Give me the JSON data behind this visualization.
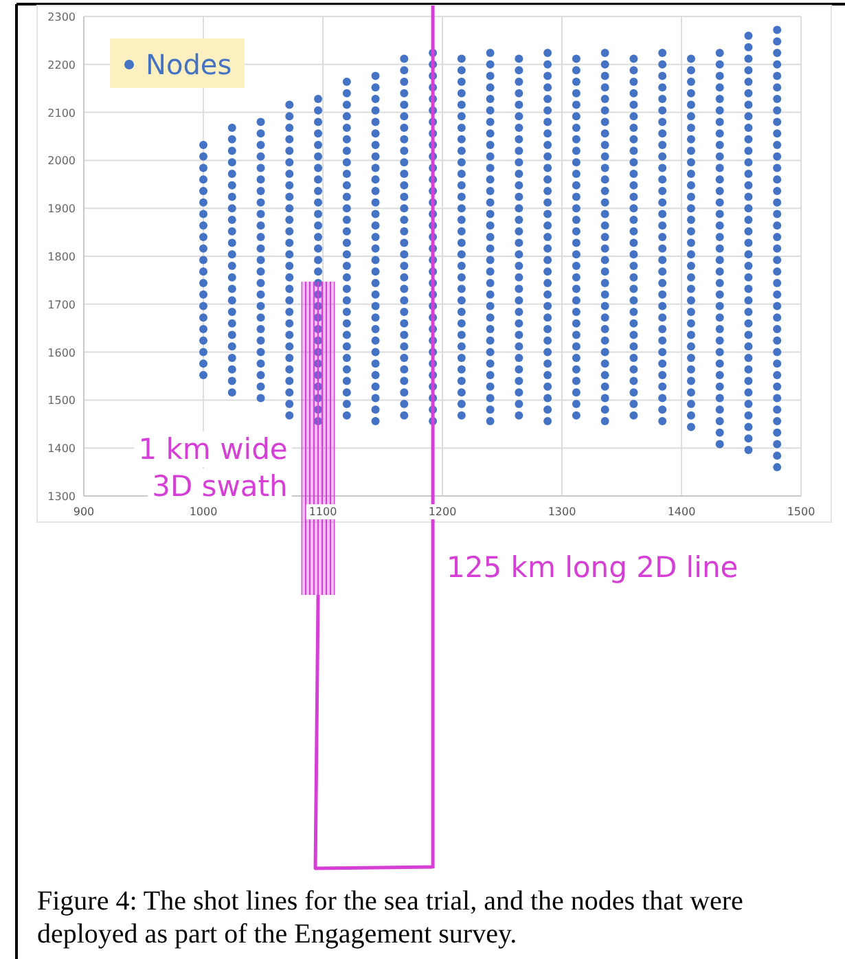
{
  "chart_data": {
    "type": "scatter",
    "xlim": [
      900,
      1500
    ],
    "ylim": [
      1300,
      2300
    ],
    "xticks": [
      900,
      1000,
      1100,
      1200,
      1300,
      1400,
      1500
    ],
    "yticks": [
      1300,
      1400,
      1500,
      1600,
      1700,
      1800,
      1900,
      2000,
      2100,
      2200,
      2300
    ],
    "grid": true,
    "legend": "top left",
    "marker": "circle",
    "series": [
      {
        "name": "Nodes",
        "color": "#4472c4",
        "x": [
          1000,
          1000,
          1000,
          1000,
          1000,
          1000,
          1000,
          1000,
          1000,
          1000,
          1000,
          1000,
          1000,
          1000,
          1000,
          1000,
          1000,
          1000,
          1000,
          1000,
          1000,
          1024,
          1024,
          1024,
          1024,
          1024,
          1024,
          1024,
          1024,
          1024,
          1024,
          1024,
          1024,
          1024,
          1024,
          1024,
          1024,
          1024,
          1024,
          1024,
          1024,
          1024,
          1024,
          1024,
          1024,
          1048,
          1048,
          1048,
          1048,
          1048,
          1048,
          1048,
          1048,
          1048,
          1048,
          1048,
          1048,
          1048,
          1048,
          1048,
          1048,
          1048,
          1048,
          1048,
          1048,
          1048,
          1048,
          1048,
          1048,
          1048,
          1072,
          1072,
          1072,
          1072,
          1072,
          1072,
          1072,
          1072,
          1072,
          1072,
          1072,
          1072,
          1072,
          1072,
          1072,
          1072,
          1072,
          1072,
          1072,
          1072,
          1072,
          1072,
          1072,
          1072,
          1072,
          1072,
          1072,
          1072,
          1096,
          1096,
          1096,
          1096,
          1096,
          1096,
          1096,
          1096,
          1096,
          1096,
          1096,
          1096,
          1096,
          1096,
          1096,
          1096,
          1096,
          1096,
          1096,
          1096,
          1096,
          1096,
          1096,
          1096,
          1096,
          1096,
          1096,
          1096,
          1096,
          1120,
          1120,
          1120,
          1120,
          1120,
          1120,
          1120,
          1120,
          1120,
          1120,
          1120,
          1120,
          1120,
          1120,
          1120,
          1120,
          1120,
          1120,
          1120,
          1120,
          1120,
          1120,
          1120,
          1120,
          1120,
          1120,
          1120,
          1120,
          1120,
          1120,
          1144,
          1144,
          1144,
          1144,
          1144,
          1144,
          1144,
          1144,
          1144,
          1144,
          1144,
          1144,
          1144,
          1144,
          1144,
          1144,
          1144,
          1144,
          1144,
          1144,
          1144,
          1144,
          1144,
          1144,
          1144,
          1144,
          1144,
          1144,
          1144,
          1144,
          1144,
          1168,
          1168,
          1168,
          1168,
          1168,
          1168,
          1168,
          1168,
          1168,
          1168,
          1168,
          1168,
          1168,
          1168,
          1168,
          1168,
          1168,
          1168,
          1168,
          1168,
          1168,
          1168,
          1168,
          1168,
          1168,
          1168,
          1168,
          1168,
          1168,
          1168,
          1168,
          1168,
          1192,
          1192,
          1192,
          1192,
          1192,
          1192,
          1192,
          1192,
          1192,
          1192,
          1192,
          1192,
          1192,
          1192,
          1192,
          1192,
          1192,
          1192,
          1192,
          1192,
          1192,
          1192,
          1192,
          1192,
          1192,
          1192,
          1192,
          1192,
          1192,
          1192,
          1192,
          1192,
          1192,
          1216,
          1216,
          1216,
          1216,
          1216,
          1216,
          1216,
          1216,
          1216,
          1216,
          1216,
          1216,
          1216,
          1216,
          1216,
          1216,
          1216,
          1216,
          1216,
          1216,
          1216,
          1216,
          1216,
          1216,
          1216,
          1216,
          1216,
          1216,
          1216,
          1216,
          1216,
          1216,
          1240,
          1240,
          1240,
          1240,
          1240,
          1240,
          1240,
          1240,
          1240,
          1240,
          1240,
          1240,
          1240,
          1240,
          1240,
          1240,
          1240,
          1240,
          1240,
          1240,
          1240,
          1240,
          1240,
          1240,
          1240,
          1240,
          1240,
          1240,
          1240,
          1240,
          1240,
          1240,
          1240,
          1264,
          1264,
          1264,
          1264,
          1264,
          1264,
          1264,
          1264,
          1264,
          1264,
          1264,
          1264,
          1264,
          1264,
          1264,
          1264,
          1264,
          1264,
          1264,
          1264,
          1264,
          1264,
          1264,
          1264,
          1264,
          1264,
          1264,
          1264,
          1264,
          1264,
          1264,
          1264,
          1288,
          1288,
          1288,
          1288,
          1288,
          1288,
          1288,
          1288,
          1288,
          1288,
          1288,
          1288,
          1288,
          1288,
          1288,
          1288,
          1288,
          1288,
          1288,
          1288,
          1288,
          1288,
          1288,
          1288,
          1288,
          1288,
          1288,
          1288,
          1288,
          1288,
          1288,
          1288,
          1288,
          1312,
          1312,
          1312,
          1312,
          1312,
          1312,
          1312,
          1312,
          1312,
          1312,
          1312,
          1312,
          1312,
          1312,
          1312,
          1312,
          1312,
          1312,
          1312,
          1312,
          1312,
          1312,
          1312,
          1312,
          1312,
          1312,
          1312,
          1312,
          1312,
          1312,
          1312,
          1312,
          1336,
          1336,
          1336,
          1336,
          1336,
          1336,
          1336,
          1336,
          1336,
          1336,
          1336,
          1336,
          1336,
          1336,
          1336,
          1336,
          1336,
          1336,
          1336,
          1336,
          1336,
          1336,
          1336,
          1336,
          1336,
          1336,
          1336,
          1336,
          1336,
          1336,
          1336,
          1336,
          1336,
          1360,
          1360,
          1360,
          1360,
          1360,
          1360,
          1360,
          1360,
          1360,
          1360,
          1360,
          1360,
          1360,
          1360,
          1360,
          1360,
          1360,
          1360,
          1360,
          1360,
          1360,
          1360,
          1360,
          1360,
          1360,
          1360,
          1360,
          1360,
          1360,
          1360,
          1360,
          1360,
          1384,
          1384,
          1384,
          1384,
          1384,
          1384,
          1384,
          1384,
          1384,
          1384,
          1384,
          1384,
          1384,
          1384,
          1384,
          1384,
          1384,
          1384,
          1384,
          1384,
          1384,
          1384,
          1384,
          1384,
          1384,
          1384,
          1384,
          1384,
          1384,
          1384,
          1384,
          1384,
          1384,
          1408,
          1408,
          1408,
          1408,
          1408,
          1408,
          1408,
          1408,
          1408,
          1408,
          1408,
          1408,
          1408,
          1408,
          1408,
          1408,
          1408,
          1408,
          1408,
          1408,
          1408,
          1408,
          1408,
          1408,
          1408,
          1408,
          1408,
          1408,
          1408,
          1408,
          1408,
          1408,
          1408,
          1432,
          1432,
          1432,
          1432,
          1432,
          1432,
          1432,
          1432,
          1432,
          1432,
          1432,
          1432,
          1432,
          1432,
          1432,
          1432,
          1432,
          1432,
          1432,
          1432,
          1432,
          1432,
          1432,
          1432,
          1432,
          1432,
          1432,
          1432,
          1432,
          1432,
          1432,
          1432,
          1432,
          1432,
          1432,
          1456,
          1456,
          1456,
          1456,
          1456,
          1456,
          1456,
          1456,
          1456,
          1456,
          1456,
          1456,
          1456,
          1456,
          1456,
          1456,
          1456,
          1456,
          1456,
          1456,
          1456,
          1456,
          1456,
          1456,
          1456,
          1456,
          1456,
          1456,
          1456,
          1456,
          1456,
          1456,
          1456,
          1456,
          1456,
          1456,
          1456,
          1480,
          1480,
          1480,
          1480,
          1480,
          1480,
          1480,
          1480,
          1480,
          1480,
          1480,
          1480,
          1480,
          1480,
          1480,
          1480,
          1480,
          1480,
          1480,
          1480,
          1480,
          1480,
          1480,
          1480,
          1480,
          1480,
          1480,
          1480,
          1480,
          1480,
          1480,
          1480,
          1480,
          1480,
          1480,
          1480,
          1480,
          1480,
          1480
        ],
        "values": [
          1552,
          1576,
          1600,
          1624,
          1648,
          1672,
          1696,
          1720,
          1744,
          1768,
          1792,
          1816,
          1840,
          1864,
          1888,
          1912,
          1936,
          1960,
          1984,
          2008,
          2032,
          1516,
          1540,
          1564,
          1588,
          1612,
          1636,
          1660,
          1684,
          1708,
          1732,
          1756,
          1780,
          1804,
          1828,
          1852,
          1876,
          1900,
          1924,
          1948,
          1972,
          1996,
          2020,
          2044,
          2068,
          1504,
          1528,
          1552,
          1576,
          1600,
          1624,
          1648,
          1672,
          1696,
          1720,
          1744,
          1768,
          1792,
          1816,
          1840,
          1864,
          1888,
          1912,
          1936,
          1960,
          1984,
          2008,
          2032,
          2056,
          2080,
          1468,
          1492,
          1516,
          1540,
          1564,
          1588,
          1612,
          1636,
          1660,
          1684,
          1708,
          1732,
          1756,
          1780,
          1804,
          1828,
          1852,
          1876,
          1900,
          1924,
          1948,
          1972,
          1996,
          2020,
          2044,
          2068,
          2092,
          2116,
          1456,
          1480,
          1504,
          1528,
          1552,
          1576,
          1600,
          1624,
          1648,
          1672,
          1696,
          1720,
          1744,
          1768,
          1792,
          1816,
          1840,
          1864,
          1888,
          1912,
          1936,
          1960,
          1984,
          2008,
          2032,
          2056,
          2080,
          2104,
          2128,
          1468,
          1492,
          1516,
          1540,
          1564,
          1588,
          1612,
          1636,
          1660,
          1684,
          1708,
          1732,
          1756,
          1780,
          1804,
          1828,
          1852,
          1876,
          1900,
          1924,
          1948,
          1972,
          1996,
          2020,
          2044,
          2068,
          2092,
          2116,
          2140,
          2164,
          1456,
          1480,
          1504,
          1528,
          1552,
          1576,
          1600,
          1624,
          1648,
          1672,
          1696,
          1720,
          1744,
          1768,
          1792,
          1816,
          1840,
          1864,
          1888,
          1912,
          1936,
          1960,
          1984,
          2008,
          2032,
          2056,
          2080,
          2104,
          2128,
          2152,
          2176,
          1468,
          1492,
          1516,
          1540,
          1564,
          1588,
          1612,
          1636,
          1660,
          1684,
          1708,
          1732,
          1756,
          1780,
          1804,
          1828,
          1852,
          1876,
          1900,
          1924,
          1948,
          1972,
          1996,
          2020,
          2044,
          2068,
          2092,
          2116,
          2140,
          2164,
          2188,
          2212,
          1456,
          1480,
          1504,
          1528,
          1552,
          1576,
          1600,
          1624,
          1648,
          1672,
          1696,
          1720,
          1744,
          1768,
          1792,
          1816,
          1840,
          1864,
          1888,
          1912,
          1936,
          1960,
          1984,
          2008,
          2032,
          2056,
          2080,
          2104,
          2128,
          2152,
          2176,
          2200,
          2224,
          1468,
          1492,
          1516,
          1540,
          1564,
          1588,
          1612,
          1636,
          1660,
          1684,
          1708,
          1732,
          1756,
          1780,
          1804,
          1828,
          1852,
          1876,
          1900,
          1924,
          1948,
          1972,
          1996,
          2020,
          2044,
          2068,
          2092,
          2116,
          2140,
          2164,
          2188,
          2212,
          1456,
          1480,
          1504,
          1528,
          1552,
          1576,
          1600,
          1624,
          1648,
          1672,
          1696,
          1720,
          1744,
          1768,
          1792,
          1816,
          1840,
          1864,
          1888,
          1912,
          1936,
          1960,
          1984,
          2008,
          2032,
          2056,
          2080,
          2104,
          2128,
          2152,
          2176,
          2200,
          2224,
          1468,
          1492,
          1516,
          1540,
          1564,
          1588,
          1612,
          1636,
          1660,
          1684,
          1708,
          1732,
          1756,
          1780,
          1804,
          1828,
          1852,
          1876,
          1900,
          1924,
          1948,
          1972,
          1996,
          2020,
          2044,
          2068,
          2092,
          2116,
          2140,
          2164,
          2188,
          2212,
          1456,
          1480,
          1504,
          1528,
          1552,
          1576,
          1600,
          1624,
          1648,
          1672,
          1696,
          1720,
          1744,
          1768,
          1792,
          1816,
          1840,
          1864,
          1888,
          1912,
          1936,
          1960,
          1984,
          2008,
          2032,
          2056,
          2080,
          2104,
          2128,
          2152,
          2176,
          2200,
          2224,
          1468,
          1492,
          1516,
          1540,
          1564,
          1588,
          1612,
          1636,
          1660,
          1684,
          1708,
          1732,
          1756,
          1780,
          1804,
          1828,
          1852,
          1876,
          1900,
          1924,
          1948,
          1972,
          1996,
          2020,
          2044,
          2068,
          2092,
          2116,
          2140,
          2164,
          2188,
          2212,
          1456,
          1480,
          1504,
          1528,
          1552,
          1576,
          1600,
          1624,
          1648,
          1672,
          1696,
          1720,
          1744,
          1768,
          1792,
          1816,
          1840,
          1864,
          1888,
          1912,
          1936,
          1960,
          1984,
          2008,
          2032,
          2056,
          2080,
          2104,
          2128,
          2152,
          2176,
          2200,
          2224,
          1468,
          1492,
          1516,
          1540,
          1564,
          1588,
          1612,
          1636,
          1660,
          1684,
          1708,
          1732,
          1756,
          1780,
          1804,
          1828,
          1852,
          1876,
          1900,
          1924,
          1948,
          1972,
          1996,
          2020,
          2044,
          2068,
          2092,
          2116,
          2140,
          2164,
          2188,
          2212,
          1456,
          1480,
          1504,
          1528,
          1552,
          1576,
          1600,
          1624,
          1648,
          1672,
          1696,
          1720,
          1744,
          1768,
          1792,
          1816,
          1840,
          1864,
          1888,
          1912,
          1936,
          1960,
          1984,
          2008,
          2032,
          2056,
          2080,
          2104,
          2128,
          2152,
          2176,
          2200,
          2224,
          1444,
          1468,
          1492,
          1516,
          1540,
          1564,
          1588,
          1612,
          1636,
          1660,
          1684,
          1708,
          1732,
          1756,
          1780,
          1804,
          1828,
          1852,
          1876,
          1900,
          1924,
          1948,
          1972,
          1996,
          2020,
          2044,
          2068,
          2092,
          2116,
          2140,
          2164,
          2188,
          2212,
          1408,
          1432,
          1456,
          1480,
          1504,
          1528,
          1552,
          1576,
          1600,
          1624,
          1648,
          1672,
          1696,
          1720,
          1744,
          1768,
          1792,
          1816,
          1840,
          1864,
          1888,
          1912,
          1936,
          1960,
          1984,
          2008,
          2032,
          2056,
          2080,
          2104,
          2128,
          2152,
          2176,
          2200,
          2224,
          1396,
          1420,
          1444,
          1468,
          1492,
          1516,
          1540,
          1564,
          1588,
          1612,
          1636,
          1660,
          1684,
          1708,
          1732,
          1756,
          1780,
          1804,
          1828,
          1852,
          1876,
          1900,
          1924,
          1948,
          1972,
          1996,
          2020,
          2044,
          2068,
          2092,
          2116,
          2140,
          2164,
          2188,
          2212,
          2236,
          2260,
          1360,
          1384,
          1408,
          1432,
          1456,
          1480,
          1504,
          1528,
          1552,
          1576,
          1600,
          1624,
          1648,
          1672,
          1696,
          1720,
          1744,
          1768,
          1792,
          1816,
          1840,
          1864,
          1888,
          1912,
          1936,
          1960,
          1984,
          2008,
          2032,
          2056,
          2080,
          2104,
          2128,
          2152,
          2176,
          2200,
          2224,
          2248,
          2272
        ]
      }
    ],
    "ref_lines": [
      {
        "axis": "x",
        "value": 1192,
        "label": "125 km long 2D line",
        "color": "#d63fd6"
      }
    ],
    "bands": [
      {
        "axis": "x",
        "from": 1082,
        "to": 1110,
        "label": "1 km wide 3D swath",
        "color": "#d63fd6"
      }
    ],
    "annotations": [
      "Figure 4: The shot lines for the sea trial, and the nodes that were deployed as part of the Engagement survey."
    ]
  }
}
